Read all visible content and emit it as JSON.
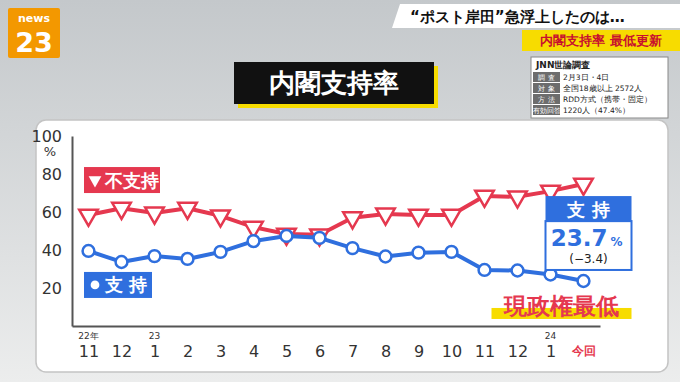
{
  "logo": {
    "top": "news",
    "bottom": "23"
  },
  "header": {
    "headline": "“ポスト岸田”急浮上したのは…",
    "tag": "内閣支持率 最低更新"
  },
  "survey": {
    "title": "JNN世論調査",
    "rows": [
      [
        "調 査",
        "2月3日・4日"
      ],
      [
        "対 象",
        "全国18歳以上 2572人"
      ],
      [
        "方 法",
        "RDD方式（携帯・固定）"
      ],
      [
        "有効回答",
        "1220人（47.4%）"
      ]
    ]
  },
  "chart_data": {
    "type": "line",
    "title": "内閣支持率",
    "categories": [
      "11",
      "12",
      "1",
      "2",
      "3",
      "4",
      "5",
      "6",
      "7",
      "8",
      "9",
      "10",
      "11",
      "12",
      "1",
      "今回"
    ],
    "category_years": [
      "22年",
      null,
      "23",
      null,
      null,
      null,
      null,
      null,
      null,
      null,
      null,
      null,
      null,
      null,
      "24",
      null
    ],
    "ylim": [
      0,
      100
    ],
    "yticks": [
      20,
      40,
      60,
      80,
      100
    ],
    "y_unit": "%",
    "grid": false,
    "legend": "left",
    "series": [
      {
        "name": "不支持",
        "color": "#e5384f",
        "marker": "triangle-down",
        "values": [
          58.4,
          62.0,
          59.5,
          62.0,
          58.0,
          52.0,
          48.4,
          48.0,
          57.0,
          59.0,
          58.4,
          58.4,
          68.4,
          68.0,
          71.0,
          74.7
        ]
      },
      {
        "name": "支 持",
        "color": "#2f6fde",
        "marker": "circle",
        "values": [
          39.5,
          33.7,
          36.8,
          35.3,
          39.0,
          44.7,
          47.4,
          46.4,
          41.0,
          36.6,
          38.6,
          39.0,
          29.5,
          29.2,
          27.1,
          23.7
        ]
      }
    ],
    "callout": {
      "label": "支 持",
      "value": 23.7,
      "unit": "%",
      "change_label": "(−3.4)"
    },
    "annotation": "現政権最低"
  }
}
